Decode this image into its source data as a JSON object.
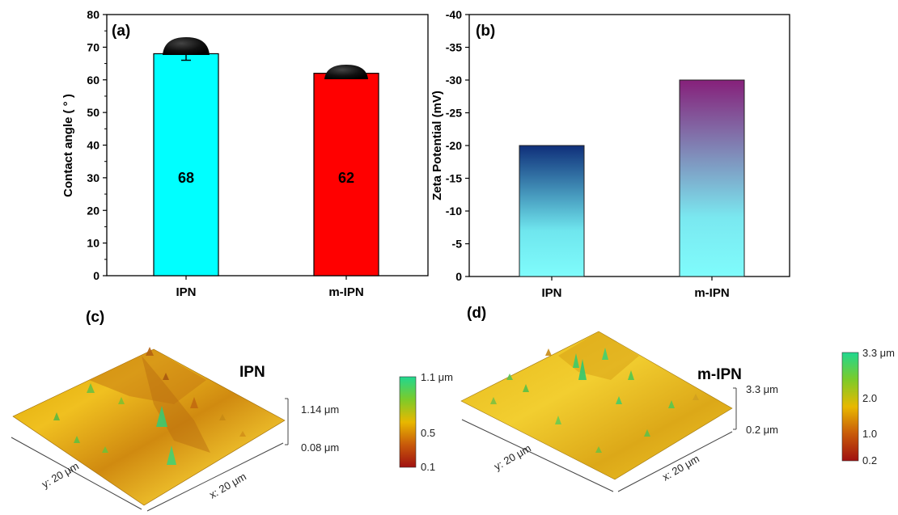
{
  "chart_data": [
    {
      "panel": "(a)",
      "type": "bar",
      "categories": [
        "IPN",
        "m-IPN"
      ],
      "values": [
        68,
        62
      ],
      "error": [
        2,
        1.3
      ],
      "value_labels": [
        "68",
        "62"
      ],
      "bar_colors": [
        "#00FFFF",
        "#FF0000"
      ],
      "ylabel": "Contact angle ( ° )",
      "ylim": [
        0,
        80
      ],
      "yticks": [
        "0",
        "10",
        "20",
        "30",
        "40",
        "50",
        "60",
        "70",
        "80"
      ],
      "xlabel": ""
    },
    {
      "panel": "(b)",
      "type": "bar",
      "categories": [
        "IPN",
        "m-IPN"
      ],
      "values": [
        -20,
        -30
      ],
      "bar_colors": [
        "#0F2F7A",
        "#86207A"
      ],
      "bar_gradient_bottom": "#7FFCFC",
      "ylabel": "Zeta Potential (mV)",
      "ylim": [
        0,
        -40
      ],
      "yticks": [
        "0",
        "-5",
        "-10",
        "-15",
        "-20",
        "-25",
        "-30",
        "-35",
        "-40"
      ],
      "xlabel": ""
    },
    {
      "panel": "(c)",
      "type": "heatmap",
      "title": "IPN",
      "x_axis": "x: 20 μm",
      "y_axis": "y: 20 μm",
      "z_axis": [
        "1.14 μm",
        "0.08 μm"
      ],
      "colorbar": [
        "1.1 μm",
        "0.5",
        "0.1"
      ],
      "colors": [
        "#A01010",
        "#E8B800",
        "#20D890"
      ]
    },
    {
      "panel": "(d)",
      "type": "heatmap",
      "title": "m-IPN",
      "x_axis": "x: 20 μm",
      "y_axis": "y: 20 μm",
      "z_axis": [
        "3.3 μm",
        "0.2 μm"
      ],
      "colorbar": [
        "3.3 μm",
        "2.0",
        "1.0",
        "0.2"
      ],
      "colors": [
        "#A01010",
        "#E8B800",
        "#20D890"
      ]
    }
  ]
}
